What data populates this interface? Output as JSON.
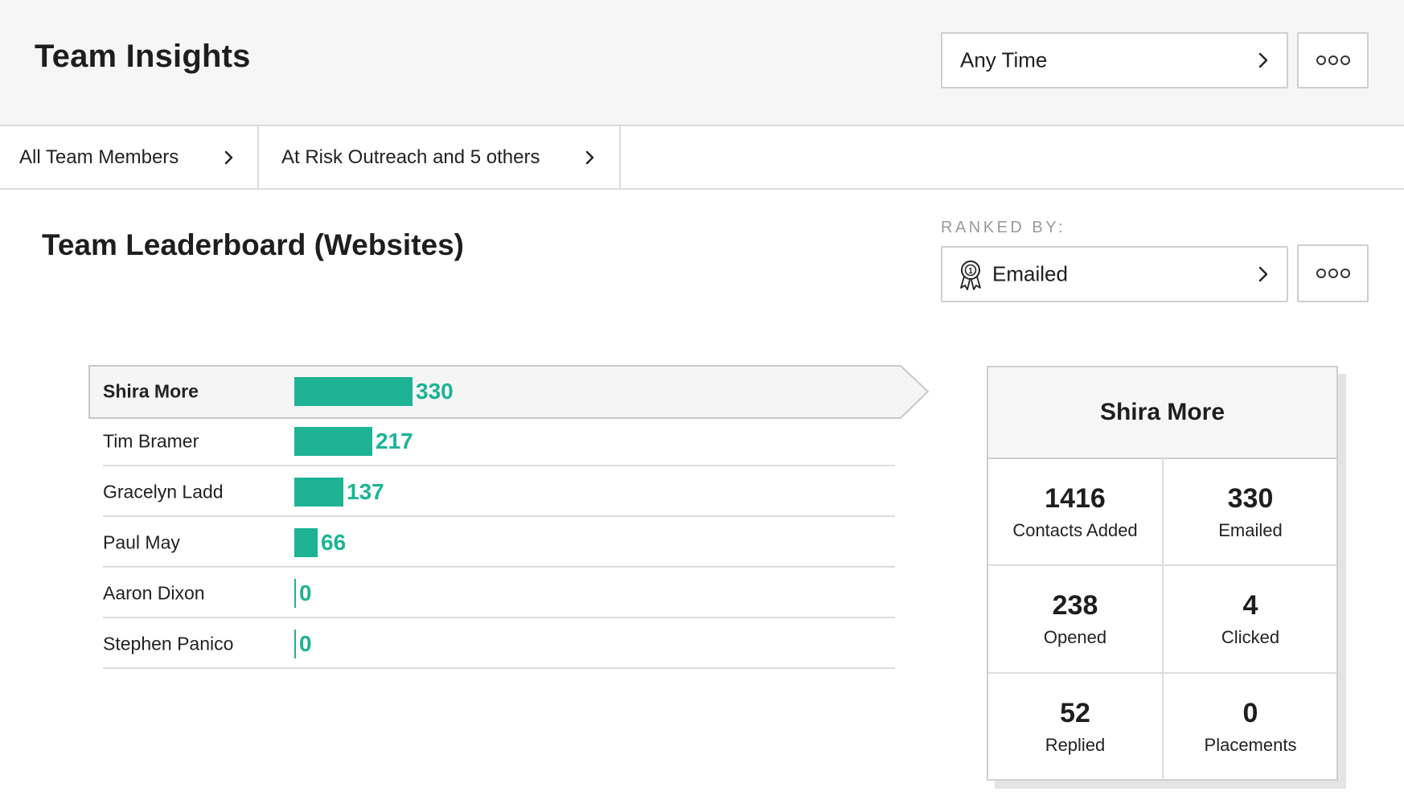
{
  "header": {
    "title": "Team Insights",
    "time_filter": "Any Time"
  },
  "filters": [
    {
      "label": "All Team Members"
    },
    {
      "label": "At Risk Outreach and 5 others"
    }
  ],
  "leaderboard": {
    "title": "Team Leaderboard (Websites)",
    "ranked_by_label": "RANKED BY:",
    "ranked_by_value": "Emailed",
    "rows": [
      {
        "name": "Shira More",
        "value": 330,
        "value_text": "330",
        "selected": true
      },
      {
        "name": "Tim Bramer",
        "value": 217,
        "value_text": "217",
        "selected": false
      },
      {
        "name": "Gracelyn Ladd",
        "value": 137,
        "value_text": "137",
        "selected": false
      },
      {
        "name": "Paul May",
        "value": 66,
        "value_text": "66",
        "selected": false
      },
      {
        "name": "Aaron Dixon",
        "value": 0,
        "value_text": "0",
        "selected": false
      },
      {
        "name": "Stephen Panico",
        "value": 0,
        "value_text": "0",
        "selected": false
      }
    ]
  },
  "detail_card": {
    "name": "Shira More",
    "stats": [
      {
        "value": "1416",
        "label": "Contacts Added"
      },
      {
        "value": "330",
        "label": "Emailed"
      },
      {
        "value": "238",
        "label": "Opened"
      },
      {
        "value": "4",
        "label": "Clicked"
      },
      {
        "value": "52",
        "label": "Replied"
      },
      {
        "value": "0",
        "label": "Placements"
      }
    ]
  },
  "colors": {
    "accent": "#1db394",
    "header_bg": "#f6f6f6",
    "border": "#cfcfcf"
  },
  "icons": {
    "chevron": "chevron-right-icon",
    "more": "more-options-icon",
    "award": "award-ribbon-icon"
  }
}
